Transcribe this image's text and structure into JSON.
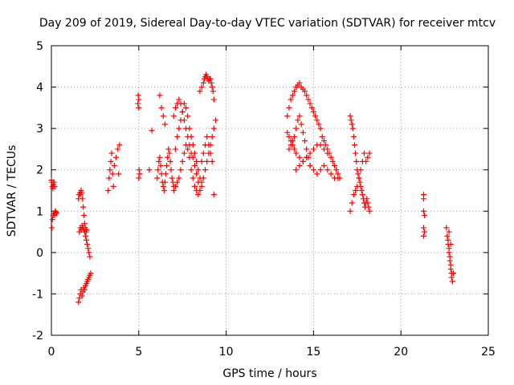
{
  "chart_data": {
    "type": "scatter",
    "title": "Day 209 of 2019, Sidereal Day-to-day VTEC variation (SDTVAR) for receiver mtcv",
    "xlabel": "GPS time / hours",
    "ylabel": "SDTVAR / TECUs",
    "xlim": [
      0,
      25
    ],
    "ylim": [
      -2,
      5
    ],
    "xticks": [
      "0",
      "5",
      "10",
      "15",
      "20",
      "25"
    ],
    "yticks": [
      "-2",
      "-1",
      "0",
      "1",
      "2",
      "3",
      "4",
      "5"
    ],
    "grid": true,
    "marker": "plus",
    "marker_color": "#ff0000",
    "series": [
      {
        "x": [
          0.0,
          0.03,
          0.06,
          0.09,
          0.12,
          0.15,
          0.18,
          0.03,
          0.06,
          0.1,
          0.14,
          0.18,
          0.22,
          0.26,
          0.3,
          1.55,
          1.58,
          1.62,
          1.66,
          1.7,
          1.74,
          1.78,
          1.82,
          1.86,
          1.9,
          1.94,
          1.98,
          2.02,
          1.6,
          1.65,
          1.7,
          1.75,
          1.8,
          1.85,
          1.9,
          1.95,
          2.0,
          2.05,
          2.1,
          2.15,
          2.2,
          1.55,
          1.6,
          1.65,
          1.7,
          1.75,
          1.8,
          1.85,
          1.9,
          1.95,
          2.0,
          2.05,
          2.1,
          2.15,
          2.2,
          2.25,
          3.25,
          3.3,
          3.35,
          3.4,
          3.45,
          3.5,
          3.55,
          3.6,
          3.7,
          3.8,
          3.85,
          3.9,
          4.95,
          5.0,
          4.97,
          5.02,
          5.0,
          5.05,
          5.0,
          5.6,
          5.75,
          6.05,
          6.1,
          6.15,
          6.2,
          6.25,
          6.3,
          6.35,
          6.4,
          6.45,
          6.5,
          6.55,
          6.6,
          6.65,
          6.7,
          6.75,
          6.8,
          6.85,
          6.9,
          6.95,
          7.0,
          6.2,
          6.3,
          6.4,
          6.5,
          7.0,
          7.1,
          7.2,
          7.3,
          7.4,
          7.5,
          7.6,
          7.7,
          7.8,
          7.9,
          8.0,
          8.1,
          8.2,
          8.3,
          8.4,
          8.5,
          7.1,
          7.2,
          7.3,
          7.4,
          7.5,
          7.6,
          7.7,
          7.8,
          7.9,
          8.0,
          8.1,
          8.2,
          8.3,
          8.4,
          8.5,
          8.6,
          7.0,
          7.1,
          7.2,
          7.3,
          7.4,
          7.5,
          7.6,
          7.7,
          7.8,
          7.9,
          8.0,
          8.1,
          8.2,
          8.3,
          8.4,
          8.5,
          8.6,
          8.7,
          8.75,
          8.8,
          8.85,
          8.9,
          8.95,
          9.0,
          9.05,
          9.1,
          9.15,
          9.2,
          9.25,
          9.3,
          8.6,
          8.7,
          8.8,
          8.9,
          9.0,
          9.1,
          9.2,
          9.3,
          9.4,
          8.6,
          8.7,
          8.8,
          8.9,
          9.0,
          9.1,
          9.2,
          9.3,
          13.5,
          13.6,
          13.7,
          13.8,
          13.9,
          14.0,
          14.1,
          14.2,
          14.3,
          14.4,
          14.5,
          14.6,
          14.7,
          14.8,
          14.9,
          15.0,
          15.1,
          15.2,
          15.3,
          15.4,
          15.5,
          15.6,
          15.7,
          15.8,
          15.9,
          16.0,
          16.1,
          16.2,
          16.3,
          16.4,
          16.5,
          13.6,
          13.7,
          13.8,
          13.9,
          14.0,
          14.1,
          14.2,
          14.3,
          14.4,
          14.5,
          14.6,
          14.7,
          14.8,
          13.5,
          13.6,
          13.7,
          13.8,
          13.9,
          14.0,
          14.2,
          14.4,
          14.6,
          14.8,
          15.0,
          15.2,
          15.4,
          15.6,
          15.8,
          14.0,
          14.2,
          14.4,
          14.6,
          14.8,
          15.0,
          15.2,
          15.4,
          15.6,
          15.8,
          16.0,
          16.2,
          16.4,
          17.1,
          17.15,
          17.2,
          17.25,
          17.3,
          17.35,
          17.4,
          17.45,
          17.5,
          17.55,
          17.6,
          17.65,
          17.7,
          17.75,
          17.8,
          17.85,
          17.9,
          17.95,
          18.0,
          18.05,
          18.1,
          18.15,
          18.2,
          17.1,
          17.2,
          17.3,
          17.4,
          17.5,
          17.6,
          17.7,
          17.8,
          17.9,
          18.0,
          18.1,
          18.2,
          21.3,
          21.3,
          21.3,
          21.35,
          21.3,
          21.35,
          21.3,
          22.6,
          22.65,
          22.7,
          22.75,
          22.8,
          22.85,
          22.9,
          22.95,
          23.0,
          22.7,
          22.75,
          22.8,
          22.85,
          22.9,
          22.95,
          22.75,
          22.85
        ],
        "y": [
          1.75,
          1.7,
          1.6,
          1.55,
          1.65,
          1.7,
          1.6,
          0.6,
          0.8,
          0.9,
          0.95,
          0.9,
          1.0,
          0.98,
          0.95,
          1.3,
          1.4,
          1.45,
          1.4,
          1.5,
          1.45,
          1.3,
          1.1,
          0.9,
          0.7,
          0.6,
          0.5,
          0.55,
          0.5,
          0.6,
          0.55,
          0.65,
          0.6,
          0.55,
          0.5,
          0.4,
          0.3,
          0.2,
          0.1,
          0.0,
          -0.1,
          -1.2,
          -1.1,
          -1.0,
          -0.9,
          -1.05,
          -0.95,
          -0.85,
          -0.9,
          -0.8,
          -0.75,
          -0.7,
          -0.65,
          -0.6,
          -0.55,
          -0.5,
          1.5,
          1.8,
          2.0,
          2.2,
          2.4,
          1.9,
          1.6,
          2.1,
          2.3,
          2.5,
          1.9,
          2.6,
          3.6,
          3.7,
          3.8,
          2.0,
          1.8,
          1.9,
          3.5,
          2.0,
          2.95,
          1.8,
          2.0,
          2.2,
          2.3,
          2.1,
          1.9,
          1.7,
          1.6,
          1.5,
          1.7,
          1.9,
          2.1,
          2.3,
          2.5,
          2.4,
          2.2,
          2.0,
          1.8,
          1.7,
          1.6,
          3.8,
          3.5,
          3.3,
          3.1,
          1.5,
          1.6,
          1.7,
          1.8,
          2.0,
          2.2,
          2.4,
          2.6,
          2.5,
          2.3,
          2.0,
          1.8,
          1.6,
          1.5,
          1.4,
          1.5,
          2.5,
          2.8,
          3.0,
          3.2,
          3.4,
          3.6,
          3.5,
          3.3,
          3.0,
          2.8,
          2.6,
          2.4,
          2.2,
          2.0,
          1.8,
          1.7,
          3.3,
          3.5,
          3.6,
          3.7,
          3.6,
          3.4,
          3.2,
          3.0,
          2.8,
          2.6,
          2.4,
          2.3,
          2.1,
          1.9,
          1.7,
          3.9,
          4.0,
          4.1,
          4.2,
          4.25,
          4.3,
          4.25,
          4.2,
          4.15,
          4.2,
          4.2,
          4.1,
          4.0,
          3.9,
          3.7,
          1.6,
          1.8,
          2.0,
          2.2,
          2.4,
          2.6,
          2.8,
          3.0,
          3.2,
          2.2,
          2.4,
          2.6,
          2.8,
          2.6,
          2.4,
          2.2,
          1.4,
          3.3,
          3.5,
          3.7,
          3.8,
          3.9,
          4.0,
          4.05,
          4.1,
          4.0,
          3.95,
          3.9,
          3.8,
          3.7,
          3.6,
          3.5,
          3.4,
          3.3,
          3.2,
          3.1,
          3.0,
          2.8,
          2.7,
          2.6,
          2.5,
          2.4,
          2.3,
          2.2,
          2.1,
          2.0,
          1.9,
          1.8,
          2.5,
          2.6,
          2.7,
          2.8,
          3.0,
          3.2,
          3.3,
          3.1,
          2.9,
          2.7,
          2.5,
          2.3,
          2.1,
          2.9,
          2.8,
          2.7,
          2.6,
          2.5,
          2.4,
          2.3,
          2.2,
          2.3,
          2.4,
          2.5,
          2.6,
          2.6,
          2.5,
          2.4,
          2.0,
          2.1,
          2.2,
          2.3,
          2.1,
          2.0,
          1.9,
          2.0,
          2.1,
          2.0,
          1.9,
          1.8,
          1.8,
          3.3,
          3.2,
          3.1,
          3.0,
          2.8,
          2.6,
          2.4,
          2.2,
          2.0,
          1.9,
          1.8,
          1.7,
          1.6,
          1.5,
          1.4,
          1.3,
          1.2,
          1.1,
          1.2,
          1.3,
          1.2,
          1.1,
          1.0,
          1.0,
          1.2,
          1.4,
          1.5,
          1.6,
          1.8,
          2.0,
          2.2,
          2.4,
          2.2,
          2.3,
          2.4,
          1.4,
          1.3,
          1.0,
          0.9,
          0.6,
          0.5,
          0.4,
          0.6,
          0.4,
          0.2,
          0.0,
          -0.2,
          -0.4,
          -0.6,
          -0.7,
          -0.5,
          0.3,
          0.1,
          -0.1,
          -0.3,
          -0.5,
          -0.7,
          0.5,
          0.2
        ]
      }
    ]
  }
}
